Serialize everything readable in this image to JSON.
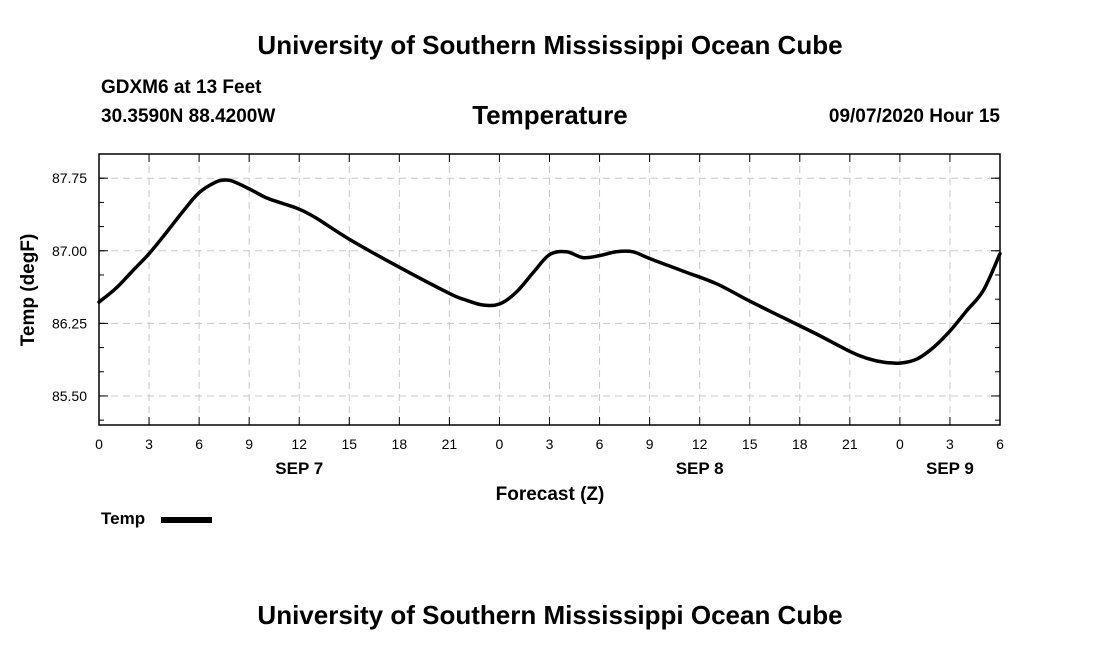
{
  "page": {
    "top_title": "University of Southern Mississippi Ocean Cube",
    "bottom_title": "University of Southern Mississippi Ocean Cube",
    "station": "GDXM6 at 13 Feet",
    "coords": "30.3590N 88.4200W",
    "datetime": "09/07/2020 Hour 15"
  },
  "chart_data": {
    "type": "line",
    "title": "Temperature",
    "xlabel": "Forecast (Z)",
    "ylabel": "Temp (degF)",
    "xlim": [
      0,
      54
    ],
    "ylim": [
      85.2,
      88.0
    ],
    "yticks": [
      85.5,
      86.25,
      87.0,
      87.75
    ],
    "ytick_labels": [
      "85.50",
      "86.25",
      "87.00",
      "87.75"
    ],
    "y_minor_step": 0.25,
    "xticks": [
      0,
      3,
      6,
      9,
      12,
      15,
      18,
      21,
      24,
      27,
      30,
      33,
      36,
      39,
      42,
      45,
      48,
      51,
      54
    ],
    "xtick_labels": [
      "0",
      "3",
      "6",
      "9",
      "12",
      "15",
      "18",
      "21",
      "0",
      "3",
      "6",
      "9",
      "12",
      "15",
      "18",
      "21",
      "0",
      "3",
      "6"
    ],
    "date_labels": [
      {
        "x": 12,
        "label": "SEP 7"
      },
      {
        "x": 36,
        "label": "SEP 8"
      },
      {
        "x": 51,
        "label": "SEP 9"
      }
    ],
    "grid": true,
    "legend": {
      "position": "bottom-left",
      "entries": [
        "Temp"
      ]
    },
    "series": [
      {
        "name": "Temp",
        "x": [
          0,
          1,
          2,
          3,
          4,
          5,
          6,
          7,
          7.5,
          8,
          9,
          10,
          11,
          12,
          13,
          15,
          18,
          21,
          22,
          23,
          24,
          25,
          26,
          27,
          28,
          29,
          30,
          31,
          32,
          33,
          35,
          37,
          39,
          41,
          43,
          45,
          46,
          47,
          48,
          49,
          50,
          51,
          52,
          53,
          54
        ],
        "y": [
          86.47,
          86.61,
          86.79,
          86.97,
          87.18,
          87.4,
          87.6,
          87.71,
          87.73,
          87.72,
          87.64,
          87.55,
          87.49,
          87.43,
          87.34,
          87.12,
          86.83,
          86.56,
          86.49,
          86.44,
          86.45,
          86.57,
          86.77,
          86.96,
          86.99,
          86.93,
          86.95,
          86.99,
          86.99,
          86.92,
          86.79,
          86.66,
          86.48,
          86.31,
          86.14,
          85.96,
          85.89,
          85.85,
          85.84,
          85.88,
          86.0,
          86.17,
          86.38,
          86.59,
          86.97
        ]
      }
    ]
  }
}
